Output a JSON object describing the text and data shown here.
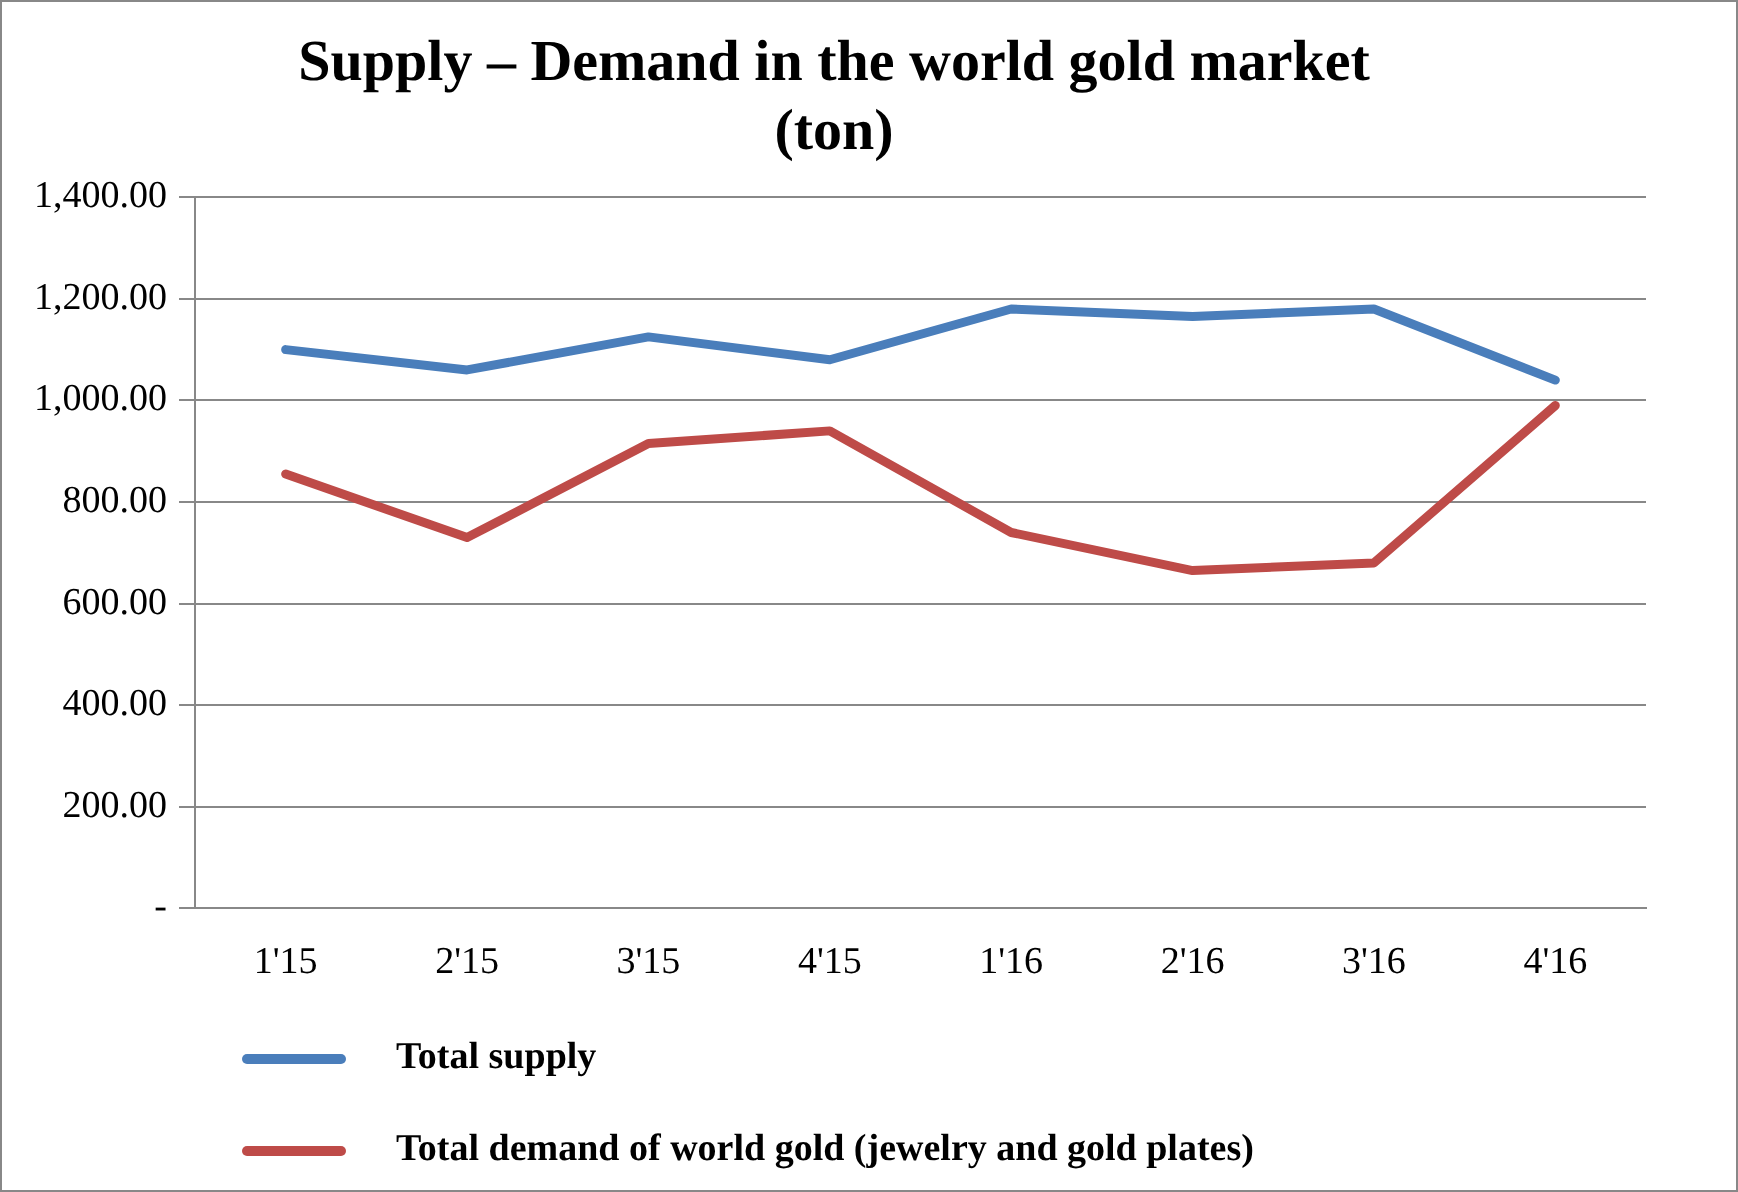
{
  "chart_data": {
    "type": "line",
    "title": [
      "Supply – Demand in the world gold market",
      "(ton)"
    ],
    "categories": [
      "1'15",
      "2'15",
      "3'15",
      "4'15",
      "1'16",
      "2'16",
      "3'16",
      "4'16"
    ],
    "series": [
      {
        "name": "Total supply",
        "color": "#4a7ebb",
        "values": [
          1100,
          1060,
          1125,
          1080,
          1180,
          1165,
          1180,
          1040
        ]
      },
      {
        "name": "Total demand of world gold (jewelry and gold plates)",
        "color": "#be4b48",
        "values": [
          855,
          730,
          915,
          940,
          740,
          665,
          680,
          990
        ]
      }
    ],
    "ylim": [
      0,
      1400
    ],
    "yticks": [
      {
        "value": 0,
        "label": "-"
      },
      {
        "value": 200,
        "label": "200.00"
      },
      {
        "value": 400,
        "label": "400.00"
      },
      {
        "value": 600,
        "label": "600.00"
      },
      {
        "value": 800,
        "label": "800.00"
      },
      {
        "value": 1000,
        "label": "1,000.00"
      },
      {
        "value": 1200,
        "label": "1,200.00"
      },
      {
        "value": 1400,
        "label": "1,400.00"
      }
    ],
    "grid": "y",
    "legend": "bottom",
    "marker": "none",
    "line_style": "solid"
  }
}
